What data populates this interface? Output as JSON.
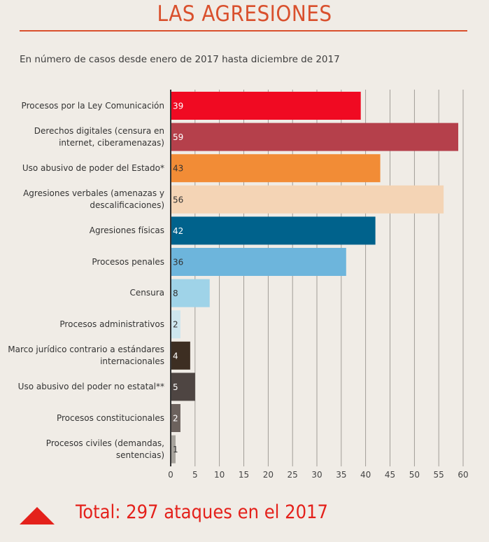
{
  "header": {
    "title": "LAS AGRESIONES",
    "subtitle": "En número de casos desde enero de 2017 hasta diciembre de 2017"
  },
  "footer": {
    "total_text": "Total: 297 ataques en el 2017",
    "arrow_icon": "triangle-up-icon",
    "accent_color": "#e4211b"
  },
  "chart_data": {
    "type": "bar",
    "orientation": "horizontal",
    "title": "",
    "xlabel": "",
    "ylabel": "",
    "xlim": [
      0,
      60
    ],
    "xticks": [
      0,
      5,
      10,
      15,
      20,
      25,
      30,
      35,
      40,
      45,
      50,
      55,
      60
    ],
    "grid": true,
    "categories": [
      [
        "Procesos por la Ley Comunicación"
      ],
      [
        "Derechos digitales (censura en",
        "internet, ciberamenazas)"
      ],
      [
        "Uso abusivo de poder del Estado*"
      ],
      [
        "Agresiones verbales (amenazas y",
        "descalificaciones)"
      ],
      [
        "Agresiones físicas"
      ],
      [
        "Procesos penales"
      ],
      [
        "Censura"
      ],
      [
        "Procesos administrativos"
      ],
      [
        "Marco jurídico contrario a estándares",
        "internacionales"
      ],
      [
        "Uso abusivo del poder no estatal**"
      ],
      [
        "Procesos constitucionales"
      ],
      [
        "Procesos civiles (demandas,",
        "sentencias)"
      ]
    ],
    "values": [
      39,
      59,
      43,
      56,
      42,
      36,
      8,
      2,
      4,
      5,
      2,
      1
    ],
    "colors": [
      "#f00a22",
      "#b5404b",
      "#f28c36",
      "#f4d4b5",
      "#00628c",
      "#6db5dc",
      "#9fd3e8",
      "#cde6ee",
      "#3d2e22",
      "#4e4542",
      "#6c625d",
      "#a7a39c"
    ],
    "label_colors": [
      "#ffffff",
      "#ffffff",
      "#333333",
      "#333333",
      "#ffffff",
      "#333333",
      "#333333",
      "#333333",
      "#ffffff",
      "#ffffff",
      "#ffffff",
      "#333333"
    ]
  }
}
